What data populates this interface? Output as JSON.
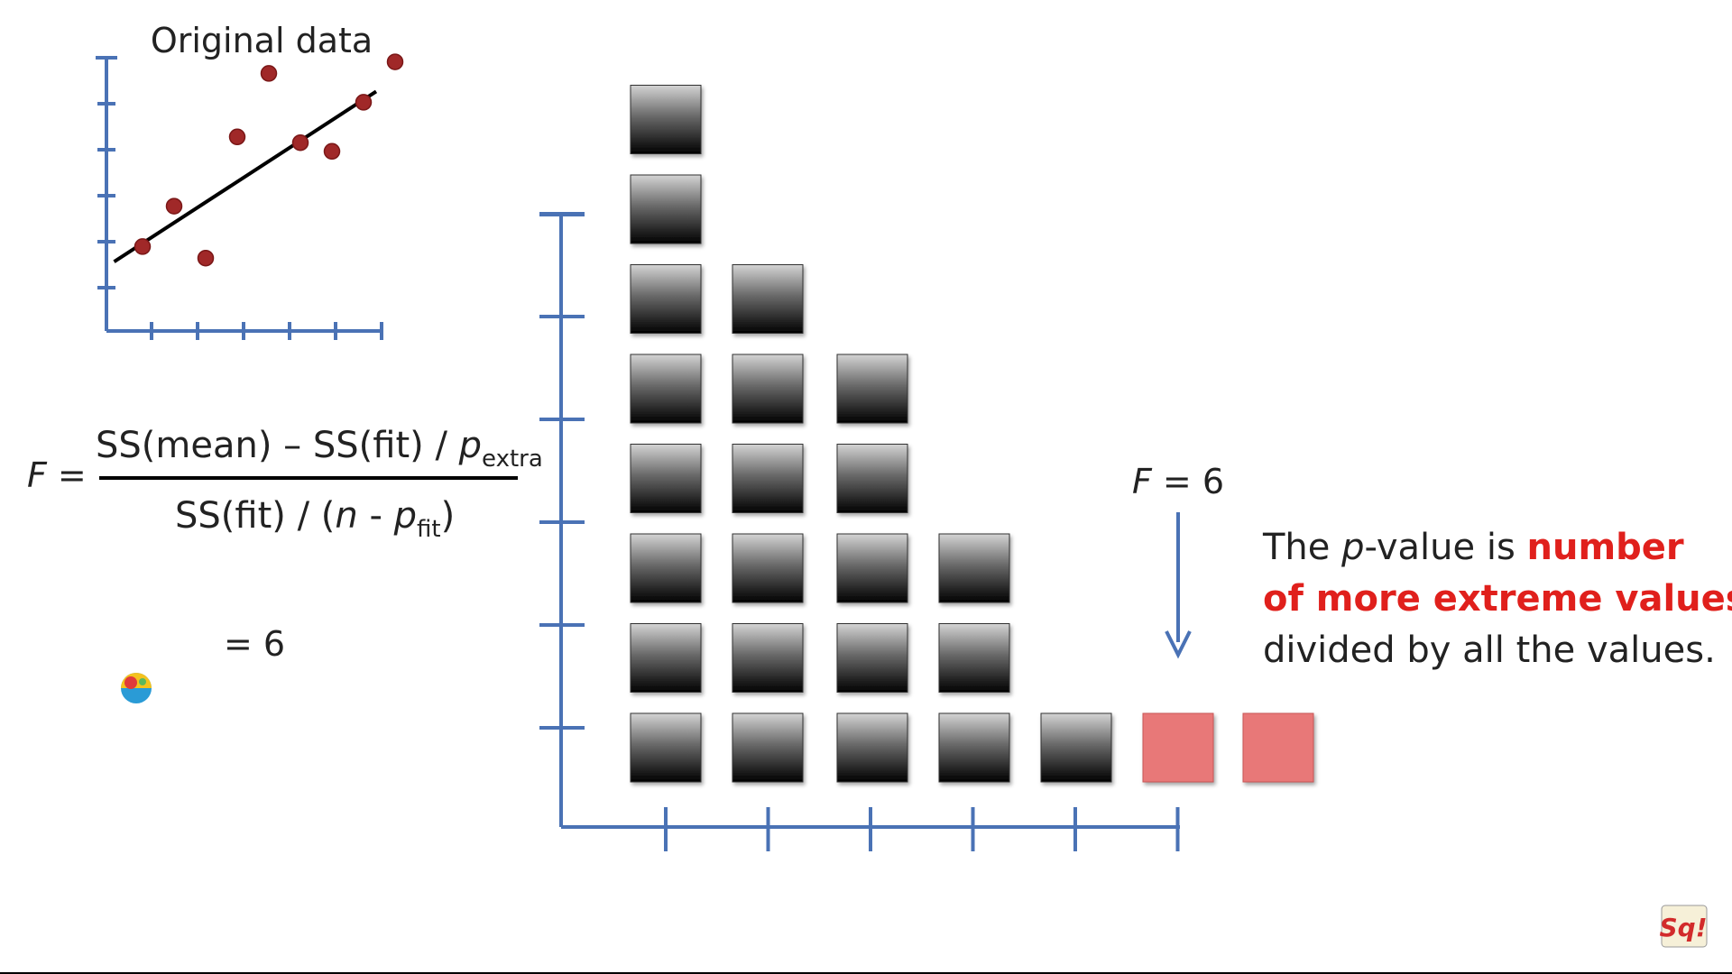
{
  "scatter": {
    "title": "Original data",
    "points": [
      [
        1,
        2.8
      ],
      [
        2,
        4.2
      ],
      [
        3,
        2.4
      ],
      [
        4,
        6.6
      ],
      [
        5,
        8.8
      ],
      [
        6,
        6.4
      ],
      [
        7,
        6.1
      ],
      [
        8,
        7.8
      ],
      [
        9,
        9.2
      ]
    ],
    "fit_line": {
      "x1": 0.9,
      "y1": 2.4,
      "x2": 9.2,
      "y2": 8.3
    },
    "x_ticks": 6,
    "y_ticks": 6,
    "colors": {
      "axis": "#4a72b5",
      "point": "#a02828",
      "point_edge": "#7a1717",
      "line": "#000000"
    }
  },
  "formula": {
    "lhs": "F =",
    "numerator": {
      "part1": "SS(mean) – SS(fit) / ",
      "p": "p",
      "sub": "extra"
    },
    "denominator": {
      "part1": "SS(fit) / (",
      "n": "n",
      "mid": " - ",
      "p": "p",
      "sub": "fit",
      "end": ")"
    },
    "result": "= 6"
  },
  "histogram": {
    "column_heights": [
      8,
      6,
      5,
      3,
      1,
      1,
      1
    ],
    "highlight_columns": [
      5,
      6
    ],
    "x_ticks": 6,
    "y_ticks": 6,
    "colors": {
      "axis": "#4a72b5",
      "box_top": "#d0d0d0",
      "box_bottom": "#000000",
      "highlight": "#e87878",
      "highlight_edge": "#c85656"
    }
  },
  "marker": {
    "label_var": "F",
    "label_rest": " = 6",
    "arrow_color": "#4a72b5"
  },
  "explanation": {
    "line1_a": "The ",
    "line1_p": "p",
    "line1_b": "-value is ",
    "line1_red": "number",
    "line2_red": "of more extreme values",
    "line3": "divided by all the values.",
    "red_color": "#e0201c"
  },
  "logo_text": "Sq!"
}
